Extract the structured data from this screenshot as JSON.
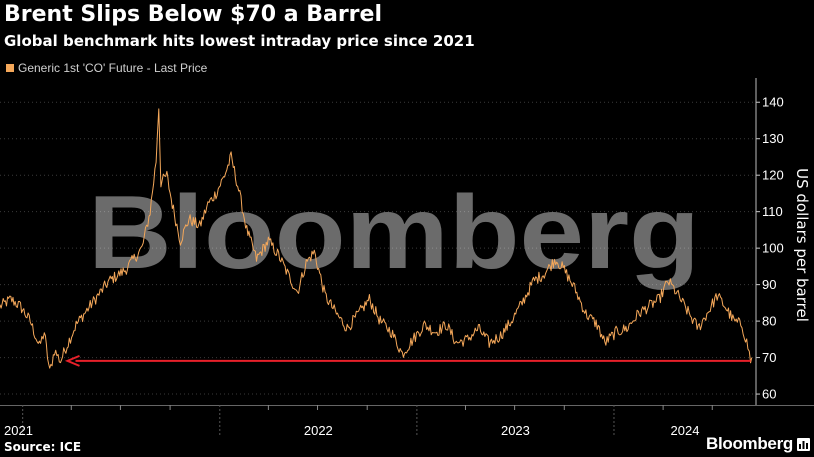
{
  "header": {
    "title": "Brent Slips Below $70 a Barrel",
    "subtitle": "Global benchmark hits lowest intraday price since 2021"
  },
  "footer": {
    "source": "Source: ICE",
    "brand": "Bloomberg",
    "watermark": "Bloomberg"
  },
  "colors": {
    "background": "#000000",
    "series": "#f5a85a",
    "arrow": "#e8202a",
    "grid": "#3a3a3a"
  },
  "chart_data": {
    "type": "line",
    "legend": [
      "Generic 1st 'CO' Future - Last Price"
    ],
    "legend_position": "top-left",
    "ylabel": "US dollars per barrel",
    "ylim": [
      57,
      145
    ],
    "xlim": [
      "2020-11-20",
      "2024-09-20"
    ],
    "yticks": [
      60,
      70,
      80,
      90,
      100,
      110,
      120,
      130,
      140
    ],
    "xticks": [
      {
        "label": "2021",
        "date": "2021-01-01"
      },
      {
        "label": "2022",
        "date": "2022-01-01"
      },
      {
        "label": "2023",
        "date": "2023-01-01"
      },
      {
        "label": "2024",
        "date": "2024-01-01"
      }
    ],
    "grid": "horizontal dotted",
    "series": [
      {
        "name": "Generic 1st 'CO' Future - Last Price",
        "points": [
          [
            "2020-11-20",
            84
          ],
          [
            "2020-12-10",
            86
          ],
          [
            "2020-12-28",
            84
          ],
          [
            "2021-01-15",
            80
          ],
          [
            "2021-02-01",
            73
          ],
          [
            "2021-02-10",
            77
          ],
          [
            "2021-02-20",
            66
          ],
          [
            "2021-03-01",
            72
          ],
          [
            "2021-03-12",
            69
          ],
          [
            "2021-03-20",
            72
          ],
          [
            "2021-04-10",
            79
          ],
          [
            "2021-05-10",
            85
          ],
          [
            "2021-06-10",
            91
          ],
          [
            "2021-07-10",
            94
          ],
          [
            "2021-08-10",
            100
          ],
          [
            "2021-08-25",
            110
          ],
          [
            "2021-09-05",
            124
          ],
          [
            "2021-09-10",
            139
          ],
          [
            "2021-09-14",
            118
          ],
          [
            "2021-09-25",
            120
          ],
          [
            "2021-10-05",
            112
          ],
          [
            "2021-10-20",
            102
          ],
          [
            "2021-11-05",
            108
          ],
          [
            "2021-11-25",
            106
          ],
          [
            "2021-12-10",
            112
          ],
          [
            "2021-12-25",
            115
          ],
          [
            "2022-01-10",
            120
          ],
          [
            "2022-01-22",
            125
          ],
          [
            "2022-02-05",
            116
          ],
          [
            "2022-02-20",
            105
          ],
          [
            "2022-03-10",
            97
          ],
          [
            "2022-04-01",
            102
          ],
          [
            "2022-04-20",
            98
          ],
          [
            "2022-05-10",
            92
          ],
          [
            "2022-05-25",
            88
          ],
          [
            "2022-06-10",
            96
          ],
          [
            "2022-06-25",
            99
          ],
          [
            "2022-07-15",
            87
          ],
          [
            "2022-08-05",
            82
          ],
          [
            "2022-08-25",
            78
          ],
          [
            "2022-09-15",
            82
          ],
          [
            "2022-10-05",
            86
          ],
          [
            "2022-10-25",
            80
          ],
          [
            "2022-11-15",
            77
          ],
          [
            "2022-12-05",
            71
          ],
          [
            "2022-12-25",
            75
          ],
          [
            "2023-01-15",
            79
          ],
          [
            "2023-02-05",
            77
          ],
          [
            "2023-02-25",
            79
          ],
          [
            "2023-03-15",
            74
          ],
          [
            "2023-04-05",
            75
          ],
          [
            "2023-04-25",
            78
          ],
          [
            "2023-05-15",
            74
          ],
          [
            "2023-06-05",
            76
          ],
          [
            "2023-06-25",
            80
          ],
          [
            "2023-07-15",
            85
          ],
          [
            "2023-08-05",
            91
          ],
          [
            "2023-08-25",
            93
          ],
          [
            "2023-09-15",
            97
          ],
          [
            "2023-10-01",
            94
          ],
          [
            "2023-10-20",
            89
          ],
          [
            "2023-11-10",
            82
          ],
          [
            "2023-12-01",
            79
          ],
          [
            "2023-12-15",
            74
          ],
          [
            "2024-01-05",
            77
          ],
          [
            "2024-01-25",
            78
          ],
          [
            "2024-02-15",
            82
          ],
          [
            "2024-03-05",
            84
          ],
          [
            "2024-03-25",
            86
          ],
          [
            "2024-04-10",
            91
          ],
          [
            "2024-04-25",
            88
          ],
          [
            "2024-05-15",
            83
          ],
          [
            "2024-06-05",
            78
          ],
          [
            "2024-06-25",
            83
          ],
          [
            "2024-07-10",
            87
          ],
          [
            "2024-07-25",
            84
          ],
          [
            "2024-08-10",
            80
          ],
          [
            "2024-08-25",
            79
          ],
          [
            "2024-09-05",
            73
          ],
          [
            "2024-09-10",
            69
          ],
          [
            "2024-09-12",
            70
          ]
        ]
      }
    ],
    "annotations": [
      {
        "type": "arrow",
        "from_date": "2024-09-10",
        "to_date": "2021-03-25",
        "y": 69.1
      }
    ]
  }
}
